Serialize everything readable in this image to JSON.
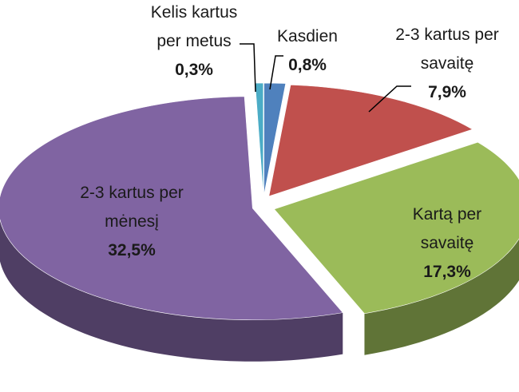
{
  "chart_data": {
    "type": "pie",
    "categories": [
      "Kasdien",
      "2-3 kartus per\nsavaitę",
      "Kartą per\nsavaitę",
      "2-3 kartus per\nmėnesį",
      "Kelis kartus\nper metus"
    ],
    "values": [
      0.8,
      7.9,
      17.3,
      32.5,
      0.3
    ],
    "value_labels": [
      "0,8%",
      "7,9%",
      "17,3%",
      "32,5%",
      "0,3%"
    ],
    "colors": [
      "#4f81bd",
      "#c0504d",
      "#9bbb59",
      "#8064a2",
      "#4bacc6"
    ]
  }
}
